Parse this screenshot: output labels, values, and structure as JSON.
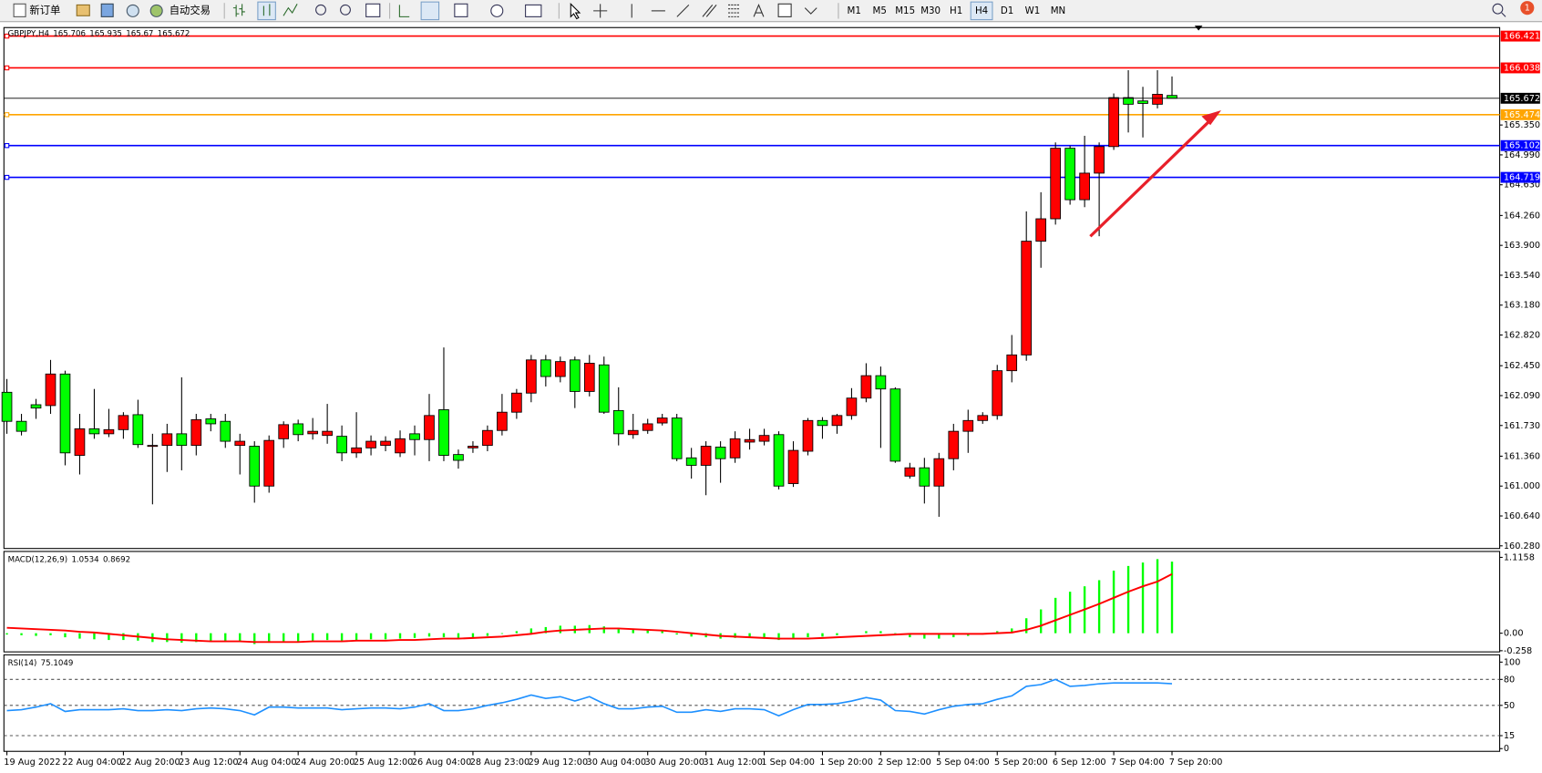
{
  "toolbar": {
    "buttons": [
      "新订单",
      "自动交易"
    ],
    "timeframes": [
      "M1",
      "M5",
      "M15",
      "M30",
      "H1",
      "H4",
      "D1",
      "W1",
      "MN"
    ],
    "active_timeframe_index": 5,
    "notification_count": 1
  },
  "chart_data": [
    {
      "type": "candlestick",
      "title": "GBPJPY,H4",
      "categories": [
        "19 Aug 2022",
        null,
        null,
        null,
        "22 Aug 04:00",
        null,
        null,
        null,
        "22 Aug 20:00",
        null,
        null,
        null,
        "23 Aug 12:00",
        null,
        null,
        null,
        "24 Aug 04:00",
        null,
        null,
        null,
        "24 Aug 20:00",
        null,
        null,
        null,
        "25 Aug 12:00",
        null,
        null,
        null,
        "26 Aug 04:00",
        null,
        null,
        null,
        "28 Aug 23:00",
        null,
        null,
        null,
        "29 Aug 12:00",
        null,
        null,
        null,
        "30 Aug 04:00",
        null,
        null,
        null,
        "30 Aug 20:00",
        null,
        null,
        null,
        "31 Aug 12:00",
        null,
        null,
        null,
        "1 Sep 04:00",
        null,
        null,
        null,
        "1 Sep 20:00",
        null,
        null,
        null,
        "2 Sep 12:00",
        null,
        null,
        null,
        "5 Sep 04:00",
        null,
        null,
        null,
        "5 Sep 20:00",
        null,
        null,
        null,
        "6 Sep 12:00",
        null,
        null,
        null,
        "7 Sep 04:00",
        null,
        null,
        null,
        "7 Sep 20:00"
      ],
      "open": [
        162.13,
        161.78,
        161.98,
        161.97,
        162.35,
        161.37,
        161.69,
        161.63,
        161.68,
        161.86,
        161.49,
        161.49,
        161.63,
        161.49,
        161.81,
        161.78,
        161.49,
        161.48,
        161.0,
        161.57,
        161.75,
        161.63,
        161.61,
        161.6,
        161.4,
        161.46,
        161.49,
        161.4,
        161.63,
        161.56,
        161.92,
        161.38,
        161.46,
        161.49,
        161.67,
        161.89,
        162.12,
        162.52,
        162.32,
        162.52,
        162.14,
        162.46,
        161.91,
        161.62,
        161.67,
        161.76,
        161.82,
        161.34,
        161.25,
        161.47,
        161.34,
        161.53,
        161.54,
        161.62,
        161.03,
        161.42,
        161.79,
        161.73,
        161.85,
        162.06,
        162.33,
        162.17,
        161.12,
        161.22,
        161.0,
        161.33,
        161.66,
        161.79,
        161.85,
        162.39,
        162.58,
        163.95,
        164.22,
        165.07,
        164.45,
        164.77,
        165.09,
        165.68,
        165.64,
        165.6,
        165.706
      ],
      "high": [
        162.29,
        161.87,
        162.05,
        162.52,
        162.39,
        161.87,
        162.17,
        161.93,
        161.89,
        162.04,
        161.63,
        161.75,
        162.31,
        161.87,
        161.87,
        161.87,
        161.63,
        161.54,
        161.61,
        161.78,
        161.8,
        161.82,
        161.99,
        161.73,
        161.89,
        161.61,
        161.6,
        161.67,
        161.73,
        162.11,
        162.67,
        161.44,
        161.54,
        161.73,
        162.11,
        162.17,
        162.58,
        162.58,
        162.56,
        162.56,
        162.58,
        162.56,
        162.19,
        161.87,
        161.81,
        161.87,
        161.87,
        161.46,
        161.54,
        161.54,
        161.66,
        161.69,
        161.69,
        161.66,
        161.54,
        161.82,
        161.83,
        161.87,
        162.18,
        162.48,
        162.44,
        162.19,
        161.28,
        161.34,
        161.4,
        161.75,
        161.92,
        161.89,
        162.46,
        162.82,
        164.31,
        164.54,
        165.14,
        165.1,
        165.22,
        165.14,
        165.73,
        166.01,
        165.81,
        166.01,
        165.935
      ],
      "low": [
        161.63,
        161.61,
        161.81,
        161.87,
        161.25,
        161.14,
        161.57,
        161.59,
        161.57,
        161.46,
        160.78,
        161.17,
        161.19,
        161.37,
        161.66,
        161.46,
        161.14,
        160.8,
        160.92,
        161.46,
        161.54,
        161.56,
        161.51,
        161.3,
        161.34,
        161.37,
        161.42,
        161.35,
        161.37,
        161.3,
        161.3,
        161.21,
        161.4,
        161.42,
        161.61,
        161.81,
        162.01,
        162.2,
        162.25,
        161.94,
        162.08,
        161.87,
        161.49,
        161.57,
        161.63,
        161.73,
        161.3,
        161.09,
        160.89,
        161.04,
        161.28,
        161.44,
        161.49,
        160.96,
        160.99,
        161.37,
        161.57,
        161.63,
        161.8,
        162.01,
        161.46,
        161.28,
        161.09,
        160.79,
        160.63,
        161.19,
        161.4,
        161.75,
        161.8,
        162.25,
        162.51,
        163.63,
        164.15,
        164.39,
        164.36,
        164.01,
        165.05,
        165.26,
        165.2,
        165.55,
        165.67
      ],
      "close": [
        161.78,
        161.66,
        161.94,
        162.35,
        161.4,
        161.69,
        161.63,
        161.68,
        161.85,
        161.5,
        161.49,
        161.63,
        161.49,
        161.8,
        161.75,
        161.54,
        161.54,
        161.0,
        161.55,
        161.74,
        161.62,
        161.66,
        161.66,
        161.4,
        161.46,
        161.54,
        161.54,
        161.57,
        161.56,
        161.85,
        161.37,
        161.31,
        161.48,
        161.67,
        161.89,
        162.12,
        162.52,
        162.32,
        162.5,
        162.14,
        162.48,
        161.89,
        161.63,
        161.67,
        161.75,
        161.82,
        161.33,
        161.25,
        161.48,
        161.33,
        161.57,
        161.56,
        161.61,
        161.0,
        161.43,
        161.79,
        161.73,
        161.85,
        162.06,
        162.33,
        162.17,
        161.3,
        161.22,
        161.0,
        161.33,
        161.66,
        161.79,
        161.85,
        162.39,
        162.58,
        163.95,
        164.22,
        165.07,
        164.45,
        164.77,
        165.09,
        165.68,
        165.6,
        165.61,
        165.72,
        165.672
      ],
      "up_color": "#ff0000",
      "down_color": "#00ff00",
      "price_line_color": "#000000",
      "levels": [
        {
          "value": 166.421,
          "color": "#ff0000"
        },
        {
          "value": 166.038,
          "color": "#ff0000"
        },
        {
          "value": 165.474,
          "color": "#ffa500"
        },
        {
          "value": 165.102,
          "color": "#0000ff"
        },
        {
          "value": 164.719,
          "color": "#0000ff"
        }
      ],
      "ylim": [
        160.26,
        166.5
      ],
      "yticks": [
        {
          "value": 165.35,
          "label": "165.350"
        },
        {
          "value": 164.99,
          "label": "164.990"
        },
        {
          "value": 164.63,
          "label": "164.630"
        },
        {
          "value": 164.26,
          "label": "164.260"
        },
        {
          "value": 163.9,
          "label": "163.900"
        },
        {
          "value": 163.54,
          "label": "163.540"
        },
        {
          "value": 163.18,
          "label": "163.180"
        },
        {
          "value": 162.82,
          "label": "162.820"
        },
        {
          "value": 162.45,
          "label": "162.450"
        },
        {
          "value": 162.09,
          "label": "162.090"
        },
        {
          "value": 161.73,
          "label": "161.730"
        },
        {
          "value": 161.36,
          "label": "161.360"
        },
        {
          "value": 161,
          "label": "161.000"
        },
        {
          "value": 160.64,
          "label": "160.640"
        },
        {
          "value": 160.28,
          "label": "160.280"
        }
      ],
      "grid": false
    },
    {
      "type": "macd",
      "title": "MACD(12,26,9)",
      "histogram": {
        "color": "#00ff00",
        "values": [
          -0.02,
          -0.03,
          -0.04,
          -0.03,
          -0.06,
          -0.08,
          -0.09,
          -0.1,
          -0.1,
          -0.11,
          -0.13,
          -0.13,
          -0.14,
          -0.13,
          -0.12,
          -0.12,
          -0.13,
          -0.16,
          -0.14,
          -0.13,
          -0.12,
          -0.11,
          -0.1,
          -0.11,
          -0.1,
          -0.09,
          -0.09,
          -0.08,
          -0.07,
          -0.05,
          -0.06,
          -0.07,
          -0.06,
          -0.04,
          -0.01,
          0.03,
          0.07,
          0.09,
          0.11,
          0.11,
          0.12,
          0.1,
          0.07,
          0.05,
          0.04,
          0.03,
          -0.02,
          -0.05,
          -0.06,
          -0.08,
          -0.07,
          -0.07,
          -0.07,
          -0.1,
          -0.09,
          -0.06,
          -0.05,
          -0.03,
          0.0,
          0.03,
          0.03,
          -0.02,
          -0.06,
          -0.08,
          -0.08,
          -0.06,
          -0.04,
          -0.02,
          0.03,
          0.07,
          0.22,
          0.35,
          0.52,
          0.61,
          0.69,
          0.78,
          0.92,
          0.99,
          1.04,
          1.09,
          1.0534
        ]
      },
      "signal": {
        "color": "#ff0000",
        "values": [
          0.08,
          0.07,
          0.06,
          0.05,
          0.04,
          0.02,
          0.01,
          -0.01,
          -0.03,
          -0.05,
          -0.07,
          -0.09,
          -0.1,
          -0.11,
          -0.12,
          -0.12,
          -0.12,
          -0.13,
          -0.13,
          -0.13,
          -0.13,
          -0.12,
          -0.12,
          -0.12,
          -0.11,
          -0.11,
          -0.11,
          -0.1,
          -0.1,
          -0.09,
          -0.08,
          -0.08,
          -0.07,
          -0.06,
          -0.05,
          -0.03,
          -0.01,
          0.02,
          0.04,
          0.05,
          0.06,
          0.07,
          0.07,
          0.06,
          0.05,
          0.04,
          0.02,
          0.0,
          -0.02,
          -0.04,
          -0.05,
          -0.06,
          -0.07,
          -0.08,
          -0.08,
          -0.08,
          -0.07,
          -0.06,
          -0.05,
          -0.04,
          -0.03,
          -0.02,
          -0.01,
          -0.01,
          -0.01,
          -0.01,
          -0.01,
          -0.01,
          0.0,
          0.01,
          0.05,
          0.11,
          0.19,
          0.27,
          0.35,
          0.43,
          0.52,
          0.61,
          0.69,
          0.76,
          0.8692
        ]
      },
      "ylim": [
        -0.275,
        1.203
      ],
      "yticks": [
        1.1158,
        {
          "value": 0,
          "label": "0.00"
        },
        -0.258
      ]
    },
    {
      "type": "line",
      "title": "RSI(14)",
      "color": "#1e90ff",
      "values": [
        44,
        45,
        48,
        52,
        43,
        45,
        45,
        45,
        46,
        44,
        44,
        45,
        44,
        46,
        47,
        46,
        44,
        39,
        48,
        48,
        47,
        47,
        47,
        45,
        46,
        47,
        47,
        46,
        48,
        52,
        44,
        44,
        46,
        50,
        53,
        57,
        62,
        58,
        60,
        55,
        60,
        52,
        46,
        46,
        48,
        49,
        42,
        42,
        45,
        43,
        46,
        46,
        45,
        38,
        45,
        51,
        51,
        52,
        55,
        59,
        56,
        44,
        43,
        40,
        45,
        49,
        51,
        52,
        57,
        61,
        72,
        74,
        80,
        72,
        73,
        75,
        76,
        76,
        76,
        76,
        75.1049
      ],
      "ylim": [
        -2,
        105
      ],
      "yticks": [
        100,
        80,
        50,
        15,
        0
      ]
    }
  ]
}
